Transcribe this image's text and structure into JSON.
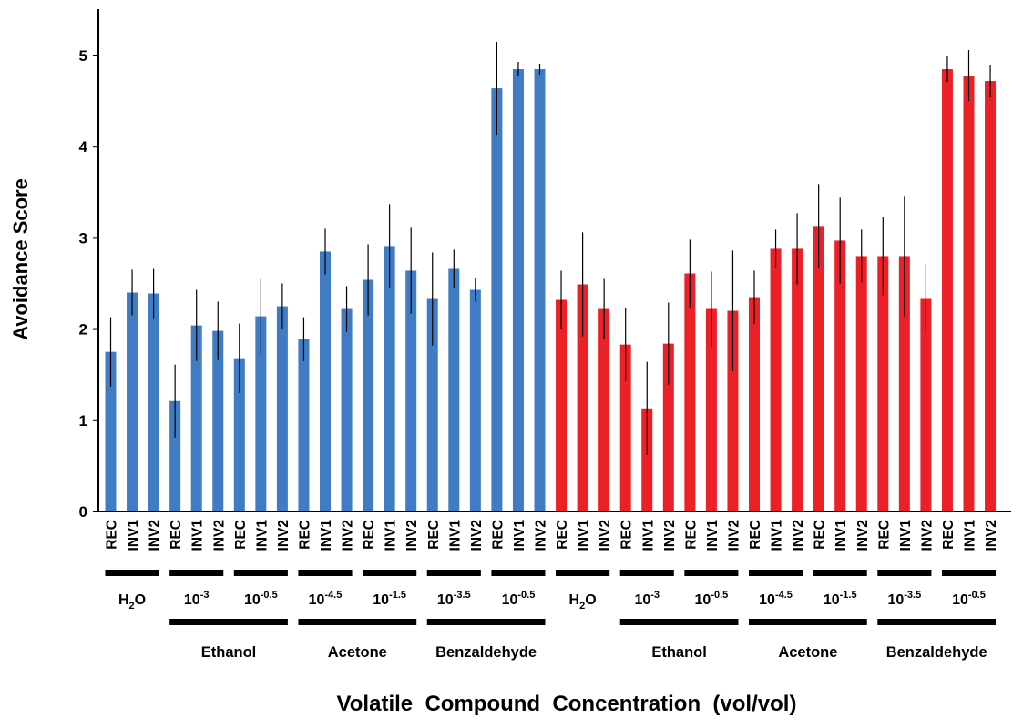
{
  "chart_data": {
    "type": "bar",
    "ylabel": "Avoidance Score",
    "xlabel": "Volatile  Compound  Concentration  (vol/vol)",
    "ylim": [
      0,
      5.5
    ],
    "yticks": [
      0,
      1,
      2,
      3,
      4,
      5
    ],
    "grid": false,
    "colors": {
      "blue": "#3f7cc4",
      "red": "#ec2127"
    },
    "genotypes": [
      "REC",
      "INV1",
      "INV2"
    ],
    "panels": [
      {
        "color": "blue",
        "groups": [
          {
            "conc_base": "H",
            "conc_sup": "",
            "conc_label": "H2O",
            "values": [
              1.75,
              2.4,
              2.39
            ],
            "errors": [
              0.38,
              0.25,
              0.27
            ]
          },
          {
            "conc_base": "10",
            "conc_sup": "-3",
            "conc_label": "10^-3",
            "values": [
              1.21,
              2.04,
              1.98
            ],
            "errors": [
              0.4,
              0.39,
              0.32
            ]
          },
          {
            "conc_base": "10",
            "conc_sup": "-0.5",
            "conc_label": "10^-0.5",
            "values": [
              1.68,
              2.14,
              2.25
            ],
            "errors": [
              0.38,
              0.41,
              0.25
            ]
          },
          {
            "conc_base": "10",
            "conc_sup": "-4.5",
            "conc_label": "10^-4.5",
            "values": [
              1.89,
              2.85,
              2.22
            ],
            "errors": [
              0.24,
              0.25,
              0.25
            ]
          },
          {
            "conc_base": "10",
            "conc_sup": "-1.5",
            "conc_label": "10^-1.5",
            "values": [
              2.54,
              2.91,
              2.64
            ],
            "errors": [
              0.39,
              0.46,
              0.47
            ]
          },
          {
            "conc_base": "10",
            "conc_sup": "-3.5",
            "conc_label": "10^-3.5",
            "values": [
              2.33,
              2.66,
              2.43
            ],
            "errors": [
              0.51,
              0.21,
              0.13
            ]
          },
          {
            "conc_base": "10",
            "conc_sup": "-0.5",
            "conc_label": "10^-0.5",
            "values": [
              4.64,
              4.85,
              4.85
            ],
            "errors": [
              0.51,
              0.08,
              0.06
            ]
          }
        ],
        "compounds": [
          "Ethanol",
          "Acetone",
          "Benzaldehyde"
        ]
      },
      {
        "color": "red",
        "groups": [
          {
            "conc_base": "H",
            "conc_sup": "",
            "conc_label": "H2O",
            "values": [
              2.32,
              2.49,
              2.22
            ],
            "errors": [
              0.32,
              0.57,
              0.33
            ]
          },
          {
            "conc_base": "10",
            "conc_sup": "-3",
            "conc_label": "10^-3",
            "values": [
              1.83,
              1.13,
              1.84
            ],
            "errors": [
              0.4,
              0.51,
              0.45
            ]
          },
          {
            "conc_base": "10",
            "conc_sup": "-0.5",
            "conc_label": "10^-0.5",
            "values": [
              2.61,
              2.22,
              2.2
            ],
            "errors": [
              0.37,
              0.41,
              0.66
            ]
          },
          {
            "conc_base": "10",
            "conc_sup": "-4.5",
            "conc_label": "10^-4.5",
            "values": [
              2.35,
              2.88,
              2.88
            ],
            "errors": [
              0.29,
              0.21,
              0.39
            ]
          },
          {
            "conc_base": "10",
            "conc_sup": "-1.5",
            "conc_label": "10^-1.5",
            "values": [
              3.13,
              2.97,
              2.8
            ],
            "errors": [
              0.46,
              0.47,
              0.29
            ]
          },
          {
            "conc_base": "10",
            "conc_sup": "-3.5",
            "conc_label": "10^-3.5",
            "values": [
              2.8,
              2.8,
              2.33
            ],
            "errors": [
              0.43,
              0.66,
              0.38
            ]
          },
          {
            "conc_base": "10",
            "conc_sup": "-0.5",
            "conc_label": "10^-0.5",
            "values": [
              4.85,
              4.78,
              4.72
            ],
            "errors": [
              0.14,
              0.28,
              0.18
            ]
          }
        ],
        "compounds": [
          "Ethanol",
          "Acetone",
          "Benzaldehyde"
        ]
      }
    ]
  }
}
